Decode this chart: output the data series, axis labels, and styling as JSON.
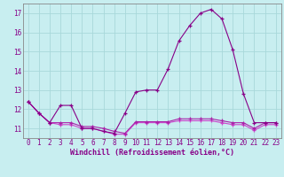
{
  "x": [
    0,
    1,
    2,
    3,
    4,
    5,
    6,
    7,
    8,
    9,
    10,
    11,
    12,
    13,
    14,
    15,
    16,
    17,
    18,
    19,
    20,
    21,
    22,
    23
  ],
  "line1": [
    12.4,
    11.8,
    11.3,
    12.2,
    12.2,
    11.0,
    11.0,
    10.85,
    10.75,
    11.8,
    12.9,
    13.0,
    13.0,
    14.1,
    15.55,
    16.35,
    17.0,
    17.2,
    16.7,
    15.1,
    12.8,
    11.3,
    11.3,
    11.3
  ],
  "line2": [
    12.4,
    11.8,
    11.3,
    11.3,
    11.3,
    11.1,
    11.1,
    11.0,
    10.85,
    10.75,
    11.35,
    11.35,
    11.35,
    11.35,
    11.5,
    11.5,
    11.5,
    11.5,
    11.4,
    11.3,
    11.3,
    11.0,
    11.3,
    11.3
  ],
  "line3": [
    12.4,
    11.8,
    11.3,
    11.2,
    11.2,
    11.0,
    11.0,
    10.85,
    10.7,
    10.7,
    11.3,
    11.3,
    11.3,
    11.3,
    11.4,
    11.4,
    11.4,
    11.4,
    11.3,
    11.2,
    11.2,
    10.9,
    11.2,
    11.2
  ],
  "line_color1": "#880088",
  "line_color2": "#aa22aa",
  "line_color3": "#cc44cc",
  "bg_color": "#c8eef0",
  "grid_color": "#a8d8da",
  "spine_color": "#888888",
  "label_color": "#880088",
  "xlabel": "Windchill (Refroidissement éolien,°C)",
  "ylim": [
    10.5,
    17.5
  ],
  "yticks": [
    11,
    12,
    13,
    14,
    15,
    16,
    17
  ],
  "xticks": [
    0,
    1,
    2,
    3,
    4,
    5,
    6,
    7,
    8,
    9,
    10,
    11,
    12,
    13,
    14,
    15,
    16,
    17,
    18,
    19,
    20,
    21,
    22,
    23
  ],
  "marker": "+",
  "markersize": 3.5,
  "linewidth": 0.8,
  "tick_fontsize": 5.5,
  "xlabel_fontsize": 6.0
}
